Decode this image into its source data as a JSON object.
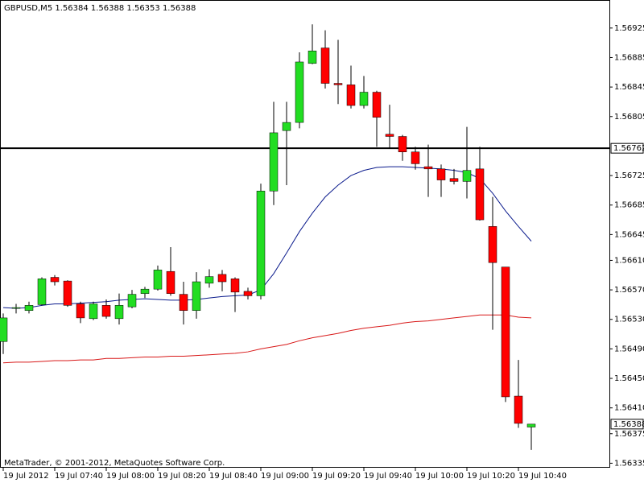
{
  "chart_data": {
    "type": "candlestick",
    "title": "GBPUSD,M5  1.56384 1.56388 1.56353 1.56388",
    "footer": "MetaTrader, © 2001-2012, MetaQuotes Software Corp.",
    "categories": [
      "19 Jul 2012",
      null,
      null,
      null,
      "19 Jul 07:40",
      null,
      null,
      null,
      "19 Jul 08:00",
      null,
      null,
      null,
      "19 Jul 08:20",
      null,
      null,
      null,
      "19 Jul 08:40",
      null,
      null,
      null,
      "19 Jul 09:00",
      null,
      null,
      null,
      "19 Jul 09:20",
      null,
      null,
      null,
      "19 Jul 09:40",
      null,
      null,
      null,
      "19 Jul 10:00",
      null,
      null,
      null,
      "19 Jul 10:20",
      null,
      null,
      null,
      "19 Jul 10:40",
      null
    ],
    "open": [
      1.565,
      1.56545,
      1.56542,
      1.5655,
      1.56587,
      1.56582,
      1.56551,
      1.56531,
      1.56549,
      1.56531,
      1.56547,
      1.56565,
      1.56571,
      1.56595,
      1.56564,
      1.56542,
      1.56579,
      1.56591,
      1.56585,
      1.56568,
      1.56562,
      1.56704,
      1.56786,
      1.56797,
      1.56877,
      1.56898,
      1.5685,
      1.56848,
      1.5682,
      1.56838,
      1.56781,
      1.56778,
      1.56757,
      1.56737,
      1.56734,
      1.56721,
      1.56717,
      1.56734,
      1.56656,
      1.56601,
      1.56426,
      1.56384
    ],
    "high": [
      1.56538,
      1.56551,
      1.56554,
      1.56587,
      1.5659,
      1.56583,
      1.56554,
      1.56554,
      1.56557,
      1.56565,
      1.5657,
      1.56574,
      1.56603,
      1.56628,
      1.56581,
      1.56594,
      1.56598,
      1.56597,
      1.56587,
      1.56573,
      1.56714,
      1.56825,
      1.56825,
      1.56892,
      1.5693,
      1.56922,
      1.56909,
      1.56874,
      1.5686,
      1.5684,
      1.56821,
      1.5678,
      1.56764,
      1.56767,
      1.5674,
      1.56734,
      1.56791,
      1.56764,
      1.56696,
      1.56601,
      1.56475,
      1.56388
    ],
    "low": [
      1.56483,
      1.56538,
      1.56538,
      1.56549,
      1.56576,
      1.56547,
      1.56525,
      1.56529,
      1.56531,
      1.56523,
      1.56545,
      1.56559,
      1.56569,
      1.56562,
      1.56523,
      1.56531,
      1.56573,
      1.56568,
      1.5654,
      1.56557,
      1.56557,
      1.56685,
      1.56712,
      1.56789,
      1.56876,
      1.56843,
      1.56822,
      1.56816,
      1.56816,
      1.56764,
      1.56762,
      1.56745,
      1.56733,
      1.56696,
      1.56696,
      1.56713,
      1.56694,
      1.56664,
      1.56516,
      1.56418,
      1.56383,
      1.56353
    ],
    "close": [
      1.56532,
      1.56546,
      1.56549,
      1.56585,
      1.56581,
      1.56549,
      1.56532,
      1.56551,
      1.56534,
      1.56549,
      1.56564,
      1.56571,
      1.56597,
      1.56565,
      1.56542,
      1.56581,
      1.56588,
      1.56581,
      1.56567,
      1.56562,
      1.56704,
      1.56783,
      1.56797,
      1.56879,
      1.56894,
      1.5685,
      1.56848,
      1.5682,
      1.56838,
      1.56804,
      1.56778,
      1.56757,
      1.56741,
      1.56734,
      1.56719,
      1.56717,
      1.56732,
      1.56665,
      1.56607,
      1.56425,
      1.56389,
      1.56388
    ],
    "up_color": "#22dd22",
    "down_color": "#ff0000",
    "wick_color": "#000000",
    "lines": [
      {
        "color": "#0a1a8c",
        "values": [
          1.56546,
          1.56545,
          1.56546,
          1.56549,
          1.56551,
          1.56551,
          1.56552,
          1.56553,
          1.56554,
          1.56556,
          1.56557,
          1.56558,
          1.56557,
          1.56556,
          1.56556,
          1.56557,
          1.56559,
          1.56561,
          1.56562,
          1.56563,
          1.5657,
          1.56592,
          1.5662,
          1.56649,
          1.56674,
          1.56696,
          1.56712,
          1.56725,
          1.56732,
          1.56736,
          1.56737,
          1.56737,
          1.56736,
          1.56735,
          1.56734,
          1.56732,
          1.56729,
          1.56721,
          1.56701,
          1.56677,
          1.56656,
          1.56636
        ]
      },
      {
        "color": "#d81818",
        "values": [
          1.56471,
          1.56472,
          1.56472,
          1.56473,
          1.56474,
          1.56474,
          1.56475,
          1.56475,
          1.56477,
          1.56477,
          1.56478,
          1.56479,
          1.56479,
          1.5648,
          1.5648,
          1.56481,
          1.56482,
          1.56483,
          1.56484,
          1.56486,
          1.5649,
          1.56493,
          1.56496,
          1.56501,
          1.56505,
          1.56508,
          1.56511,
          1.56515,
          1.56518,
          1.5652,
          1.56522,
          1.56525,
          1.56527,
          1.56528,
          1.5653,
          1.56532,
          1.56534,
          1.56536,
          1.56536,
          1.56536,
          1.56533,
          1.56532
        ]
      }
    ],
    "hline": 1.56762,
    "ylim": [
      1.5633,
      1.56963
    ],
    "yticks": [
      1.56925,
      1.56885,
      1.56845,
      1.56805,
      1.56725,
      1.56685,
      1.56645,
      {
        "value": 1.5661,
        "label": "1.56610"
      },
      {
        "value": 1.5657,
        "label": "1.56570"
      },
      {
        "value": 1.5653,
        "label": "1.56530"
      },
      {
        "value": 1.5649,
        "label": "1.56490"
      },
      {
        "value": 1.5645,
        "label": "1.56450"
      },
      {
        "value": 1.5641,
        "label": "1.56410"
      },
      1.56375,
      1.56335
    ]
  }
}
